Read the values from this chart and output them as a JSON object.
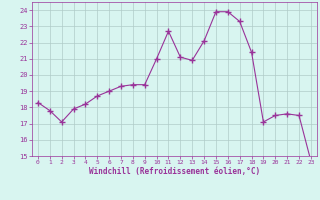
{
  "x": [
    0,
    1,
    2,
    3,
    4,
    5,
    6,
    7,
    8,
    9,
    10,
    11,
    12,
    13,
    14,
    15,
    16,
    17,
    18,
    19,
    20,
    21,
    22,
    23
  ],
  "y": [
    18.3,
    17.8,
    17.1,
    17.9,
    18.2,
    18.7,
    19.0,
    19.3,
    19.4,
    19.4,
    21.0,
    22.7,
    21.1,
    20.9,
    22.1,
    23.9,
    23.9,
    23.3,
    21.4,
    17.1,
    17.5,
    17.6,
    17.5,
    14.7
  ],
  "line_color": "#993399",
  "marker": "+",
  "marker_size": 4,
  "bg_color": "#d8f5f0",
  "grid_color": "#b0ccc8",
  "xlabel": "Windchill (Refroidissement éolien,°C)",
  "ylim": [
    15,
    24.5
  ],
  "yticks": [
    15,
    16,
    17,
    18,
    19,
    20,
    21,
    22,
    23,
    24
  ],
  "xticks": [
    0,
    1,
    2,
    3,
    4,
    5,
    6,
    7,
    8,
    9,
    10,
    11,
    12,
    13,
    14,
    15,
    16,
    17,
    18,
    19,
    20,
    21,
    22,
    23
  ],
  "tick_color": "#993399",
  "axis_color": "#993399",
  "xlabel_color": "#993399"
}
